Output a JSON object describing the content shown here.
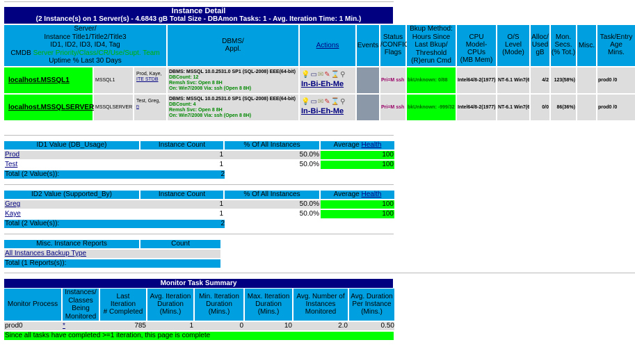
{
  "instance_detail": {
    "title": "Instance Detail",
    "summary": "(2 Instance(s) on 1 Server(s) - 4.6843 gB Total Size - DBAmon Tasks: 1 - Avg. Iteration Time: 1 Min.)",
    "headers": {
      "server_line1": "Server/",
      "server_line2": "Instance Title1/Title2/Title3",
      "server_line3": "ID1, ID2, ID3, ID4, Tag",
      "server_line4_prefix": "CMDB",
      "server_line4_hl": "Server Priority/Class/CR/Use/Supt. Team",
      "server_line5": "Uptime % Last 30 Days",
      "dbms_line1": "DBMS/",
      "dbms_line2": "Appl.",
      "actions": "Actions",
      "events": "Events",
      "status_line1": "Status",
      "status_line2": "/CONFIG",
      "status_line3": "Flags",
      "bkup_line1": "Bkup Method:",
      "bkup_line2": "Hours Since",
      "bkup_line3": "Last Bkup/",
      "bkup_line4": "Threshold",
      "bkup_line5": "(R)erun Cmd",
      "cpu_line1": "CPU",
      "cpu_line2": "Model-CPUs",
      "cpu_line3": "(MB Mem)",
      "os_line1": "O/S",
      "os_line2": "Level",
      "os_line3": "(Mode)",
      "alloc_line1": "Alloc/",
      "alloc_line2": "Used",
      "alloc_line3": "gB",
      "mon_line1": "Mon.",
      "mon_line2": "Secs.",
      "mon_line3": "(% Tot.)",
      "misc": "Misc.",
      "task_line1": "Task/Entry",
      "task_line2": "Age",
      "task_line3": "Mins."
    },
    "rows": [
      {
        "instance": "localhost.MSSQL1",
        "short": "MSSQL1",
        "title": "Prod, Kaye,",
        "title_link": "ITE STDB",
        "dbms_l1": "DBMS: MSSQL 10.0.2531.0 SP1 (SQL-2008) EEE(64-bit)",
        "dbms_l2": "DBCount: 12",
        "dbms_l3": "Remsh Svc: Open 8 8H",
        "dbms_l4": "On: Win7/2008 Via: ssh (Open 8 8H)",
        "actions": "In-Bi-Eh-Me",
        "status": "Pri=M ssh",
        "bkup": "bkUnknown: 0/88",
        "cpu": "Intel64/8-2(1977)",
        "os": "NT-6.1 Win7(64)",
        "alloc": "4/2",
        "mon": "123(58%)",
        "task": "prod0 /0"
      },
      {
        "instance": "localhost.MSSQLSERVER",
        "short": "MSSQLSERVER",
        "title": "Test, Greg,",
        "title_link": "n",
        "dbms_l1": "DBMS: MSSQL 10.0.2531.0 SP1 (SQL-2008) EEE(64-bit)",
        "dbms_l2": "DBCount: 4",
        "dbms_l3": "Remsh Svc: Open 8 8H",
        "dbms_l4": "On: Win7/2008 Via: ssh (Open 8 8H)",
        "actions": "In-Bi-Eh-Me",
        "status": "Pri=M ssh",
        "bkup": "bkUnknown: -999/32",
        "cpu": "Intel64/8-2(1977)",
        "os": "NT-6.1 Win7(64)",
        "alloc": "0/0",
        "mon": "86(36%)",
        "task": "prod0 /0"
      }
    ]
  },
  "id1_table": {
    "headers": [
      "ID1 Value (DB_Usage)",
      "Instance Count",
      "% Of All Instances",
      "Average "
    ],
    "health_link": "Health",
    "rows": [
      {
        "value": "Prod",
        "count": "1",
        "pct": "50.0%",
        "health": "100"
      },
      {
        "value": "Test",
        "count": "1",
        "pct": "50.0%",
        "health": "100"
      }
    ],
    "total_label": "Total (2 Value(s)):",
    "total_count": "2"
  },
  "id2_table": {
    "headers": [
      "ID2 Value (Supported_By)",
      "Instance Count",
      "% Of All Instances",
      "Average "
    ],
    "health_link": "Health",
    "rows": [
      {
        "value": "Greg",
        "count": "1",
        "pct": "50.0%",
        "health": "100"
      },
      {
        "value": "Kaye",
        "count": "1",
        "pct": "50.0%",
        "health": "100"
      }
    ],
    "total_label": "Total (2 Value(s)):",
    "total_count": "2"
  },
  "misc_table": {
    "headers": [
      "Misc. Instance Reports",
      "Count"
    ],
    "rows": [
      {
        "value": "All Instances Backup Type",
        "count": ""
      }
    ],
    "total_label": "Total (1 Reports(s)):",
    "total_count": ""
  },
  "monitor_summary": {
    "title": "Monitor Task Summary",
    "headers": {
      "process": "Monitor Process",
      "instances_line1": "Instances/",
      "instances_line2": "Classes",
      "instances_line3": "Being",
      "instances_line4": "Monitored",
      "last_line1": "Last",
      "last_line2": "Iteration",
      "last_line3": "# Completed",
      "avg_line1": "Avg. Iteration",
      "avg_line2": "Duration",
      "avg_line3": "(Mins.)",
      "min_line1": "Min. Iteration",
      "min_line2": "Duration",
      "min_line3": "(Mins.)",
      "max_line1": "Max. Iteration",
      "max_line2": "Duration",
      "max_line3": "(Mins.)",
      "num_line1": "Avg. Number of",
      "num_line2": "Instances",
      "num_line3": "Monitored",
      "per_line1": "Avg. Duration",
      "per_line2": "Per Instance",
      "per_line3": "(Mins.)"
    },
    "row": {
      "process": "prod0",
      "instances": "*",
      "last": "785",
      "avg": "1",
      "min": "0",
      "max": "10",
      "num": "2.0",
      "per": "0.50"
    },
    "footer": "Since all tasks have completed >=1 iteration, this page is complete"
  }
}
